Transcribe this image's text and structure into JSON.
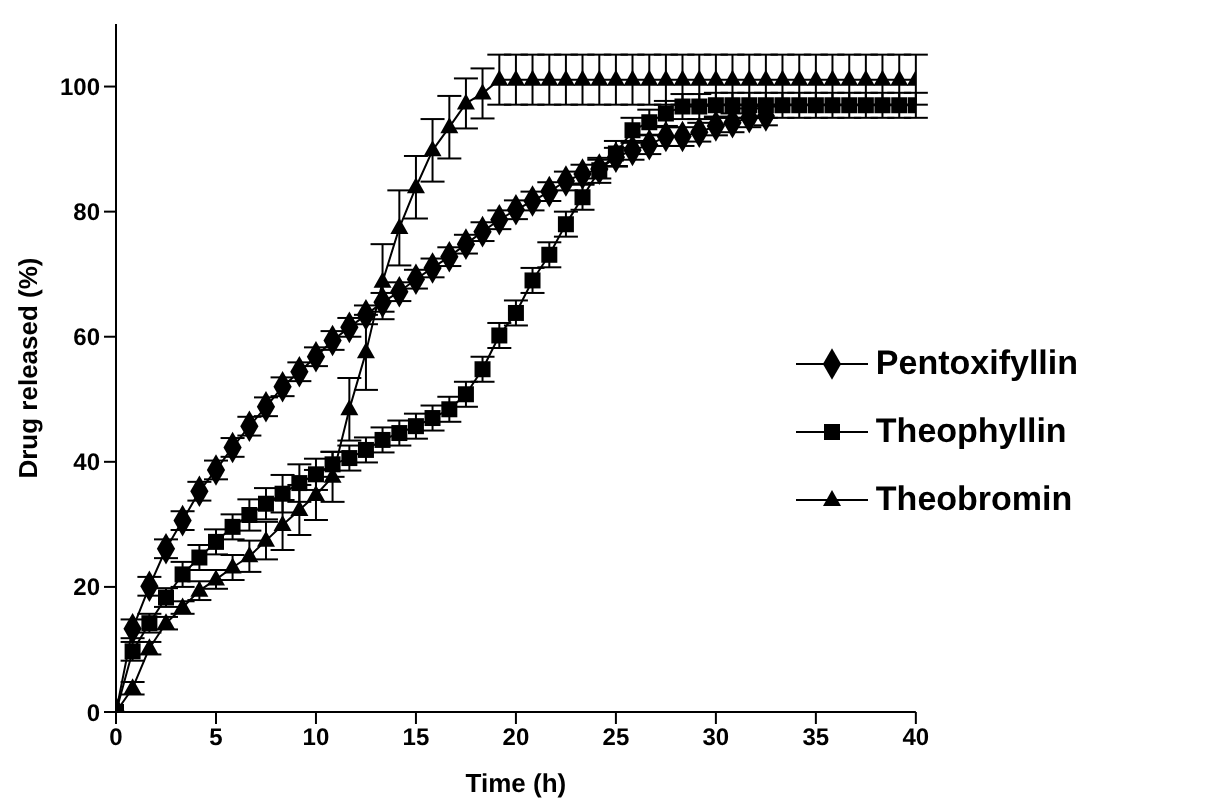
{
  "chart_data": {
    "type": "line",
    "xlabel": "Time (h)",
    "ylabel": "Drug released (%)",
    "x": [
      0,
      0.83,
      1.67,
      2.5,
      3.33,
      4.17,
      5,
      5.83,
      6.67,
      7.5,
      8.33,
      9.17,
      10,
      10.83,
      11.67,
      12.5,
      13.33,
      14.17,
      15,
      15.83,
      16.67,
      17.5,
      18.33,
      19.17,
      20,
      20.83,
      21.67,
      22.5,
      23.33,
      24.17,
      25,
      25.83,
      26.67,
      27.5,
      28.33,
      29.17,
      30,
      30.83,
      31.67,
      32.5,
      33.33,
      34.17,
      35,
      35.83,
      36.67,
      37.5,
      38.33,
      39.17,
      40
    ],
    "series": [
      {
        "name": "Pentoxifyllin",
        "color": "#000000",
        "marker": "diamond",
        "values": [
          0,
          13.3,
          20.1,
          26.1,
          30.6,
          35.3,
          38.7,
          42.3,
          45.7,
          48.8,
          52,
          54.4,
          56.8,
          59.4,
          61.5,
          63.5,
          65.5,
          67.2,
          69.2,
          71,
          72.8,
          74.8,
          76.8,
          78.7,
          80.3,
          81.7,
          83.2,
          84.9,
          86,
          86.8,
          88.7,
          89.8,
          90.7,
          92,
          92,
          92.7,
          93.7,
          94.2,
          95,
          95.3,
          null,
          null,
          null,
          null,
          null,
          null,
          null,
          null,
          null
        ],
        "errors": [
          0,
          1.5,
          1.5,
          1.5,
          1.5,
          1.5,
          1.5,
          1.5,
          1.5,
          1.5,
          1.5,
          1.5,
          1.5,
          1.5,
          1.5,
          1.5,
          1.5,
          1.5,
          1.5,
          1.5,
          1.5,
          1.5,
          1.5,
          1.5,
          1.5,
          1.5,
          1.5,
          1.5,
          1.5,
          1.5,
          1.5,
          1.5,
          1.5,
          1.5,
          1.5,
          1.5,
          1.5,
          1.5,
          1.5,
          1.5,
          null,
          null,
          null,
          null,
          null,
          null,
          null,
          null,
          null
        ]
      },
      {
        "name": "Theophyllin",
        "color": "#000000",
        "marker": "square",
        "values": [
          0,
          9.7,
          14.2,
          18.3,
          22,
          24.7,
          27.2,
          29.6,
          31.5,
          33.3,
          34.9,
          36.6,
          38,
          39.6,
          40.6,
          41.9,
          43.5,
          44.6,
          45.7,
          47,
          48.4,
          50.8,
          54.8,
          60.2,
          63.8,
          69,
          73.1,
          78,
          82.3,
          86.6,
          89.3,
          93,
          94.3,
          95.7,
          96.8,
          96.8,
          97,
          97,
          97,
          97,
          97,
          97,
          97,
          97,
          97,
          97,
          97,
          97,
          97
        ],
        "errors": [
          0,
          1.5,
          1.5,
          1.5,
          2,
          2,
          2,
          2,
          2.5,
          2.5,
          3,
          3,
          2.5,
          2,
          2,
          2,
          2,
          2,
          2,
          2,
          2,
          2,
          2,
          2,
          2,
          2,
          2,
          2,
          2,
          2,
          2,
          2,
          2,
          2,
          2,
          2,
          2,
          2,
          2,
          2,
          2,
          2,
          2,
          2,
          2,
          2,
          2,
          2,
          2
        ]
      },
      {
        "name": "Theobromin",
        "color": "#000000",
        "marker": "triangle",
        "values": [
          0,
          3.8,
          10.2,
          14.2,
          16.7,
          19.4,
          21.2,
          23.1,
          24.9,
          27.4,
          29.9,
          32.3,
          34.7,
          37.6,
          48.4,
          57.5,
          68.8,
          77.4,
          83.9,
          89.8,
          93.5,
          97.3,
          98.9,
          101.1,
          101.1,
          101.1,
          101.1,
          101.1,
          101.1,
          101.1,
          101.1,
          101.1,
          101.1,
          101.1,
          101.1,
          101.1,
          101.1,
          101.1,
          101.1,
          101.1,
          101.1,
          101.1,
          101.1,
          101.1,
          101.1,
          101.1,
          101.1,
          101.1,
          101.1
        ],
        "errors": [
          0,
          1,
          1,
          1,
          1,
          1.5,
          1.5,
          2,
          2.5,
          3,
          4,
          4,
          4,
          4,
          5,
          6,
          6,
          6,
          5,
          5,
          5,
          4,
          4,
          4,
          4,
          4,
          4,
          4,
          4,
          4,
          4,
          4,
          4,
          4,
          4,
          4,
          4,
          4,
          4,
          4,
          4,
          4,
          4,
          4,
          4,
          4,
          4,
          4,
          4
        ]
      }
    ],
    "xlim": [
      0,
      40
    ],
    "xticks": [
      0,
      5,
      10,
      15,
      20,
      25,
      30,
      35,
      40
    ],
    "ylim": [
      0,
      110
    ],
    "yticks": [
      0,
      20,
      40,
      60,
      80,
      100
    ],
    "grid": false,
    "legend": "right"
  }
}
